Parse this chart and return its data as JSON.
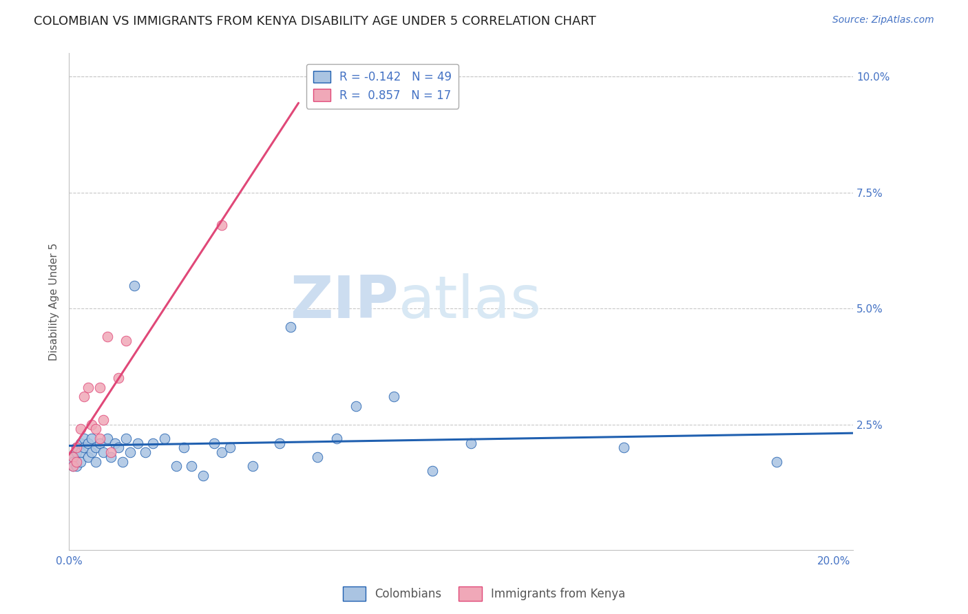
{
  "title": "COLOMBIAN VS IMMIGRANTS FROM KENYA DISABILITY AGE UNDER 5 CORRELATION CHART",
  "source": "Source: ZipAtlas.com",
  "ylabel": "Disability Age Under 5",
  "xlim": [
    0.0,
    0.205
  ],
  "ylim": [
    -0.002,
    0.105
  ],
  "xticks": [
    0.0,
    0.05,
    0.1,
    0.15,
    0.2
  ],
  "xticklabels": [
    "0.0%",
    "",
    "",
    "",
    "20.0%"
  ],
  "yticks": [
    0.0,
    0.025,
    0.05,
    0.075,
    0.1
  ],
  "yticklabels_right": [
    "",
    "2.5%",
    "5.0%",
    "7.5%",
    "10.0%"
  ],
  "colombians_x": [
    0.001,
    0.001,
    0.001,
    0.002,
    0.002,
    0.002,
    0.003,
    0.003,
    0.003,
    0.004,
    0.004,
    0.005,
    0.005,
    0.006,
    0.006,
    0.007,
    0.007,
    0.008,
    0.009,
    0.01,
    0.011,
    0.012,
    0.013,
    0.014,
    0.015,
    0.016,
    0.017,
    0.018,
    0.02,
    0.022,
    0.025,
    0.028,
    0.03,
    0.032,
    0.035,
    0.038,
    0.04,
    0.042,
    0.048,
    0.055,
    0.058,
    0.065,
    0.07,
    0.075,
    0.085,
    0.095,
    0.105,
    0.145,
    0.185
  ],
  "colombians_y": [
    0.018,
    0.017,
    0.016,
    0.02,
    0.019,
    0.016,
    0.021,
    0.019,
    0.017,
    0.022,
    0.02,
    0.021,
    0.018,
    0.022,
    0.019,
    0.02,
    0.017,
    0.021,
    0.019,
    0.022,
    0.018,
    0.021,
    0.02,
    0.017,
    0.022,
    0.019,
    0.055,
    0.021,
    0.019,
    0.021,
    0.022,
    0.016,
    0.02,
    0.016,
    0.014,
    0.021,
    0.019,
    0.02,
    0.016,
    0.021,
    0.046,
    0.018,
    0.022,
    0.029,
    0.031,
    0.015,
    0.021,
    0.02,
    0.017
  ],
  "kenya_x": [
    0.001,
    0.001,
    0.002,
    0.002,
    0.003,
    0.004,
    0.005,
    0.006,
    0.007,
    0.008,
    0.008,
    0.009,
    0.01,
    0.011,
    0.013,
    0.015,
    0.04
  ],
  "kenya_y": [
    0.018,
    0.016,
    0.02,
    0.017,
    0.024,
    0.031,
    0.033,
    0.025,
    0.024,
    0.033,
    0.022,
    0.026,
    0.044,
    0.019,
    0.035,
    0.043,
    0.068
  ],
  "r_colombians": -0.142,
  "n_colombians": 49,
  "r_kenya": 0.857,
  "n_kenya": 17,
  "color_colombians": "#aac4e2",
  "color_kenya": "#f0a8b8",
  "color_line_colombians": "#2060b0",
  "color_line_kenya": "#e04878",
  "watermark_zip": "ZIP",
  "watermark_atlas": "atlas",
  "title_fontsize": 13,
  "axis_label_fontsize": 11,
  "tick_fontsize": 11,
  "legend_fontsize": 12,
  "source_fontsize": 10
}
